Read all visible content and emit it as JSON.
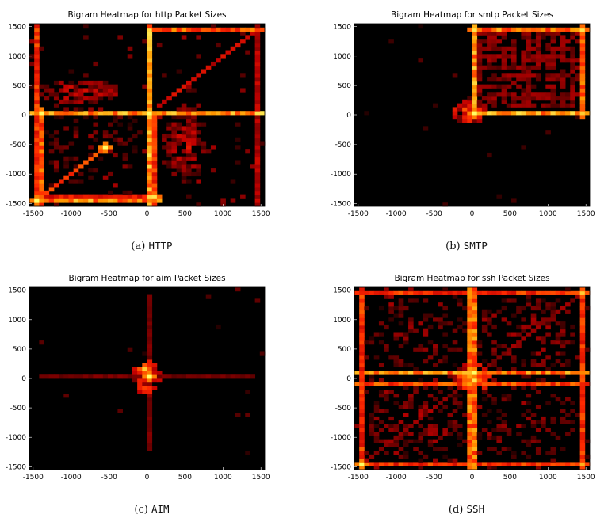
{
  "panels": [
    {
      "id": "http",
      "caption_letter": "(a)",
      "caption_code": "HTTP",
      "chart_data": {
        "type": "heatmap",
        "title": "Bigram Heatmap for http Packet Sizes",
        "xlabel": "",
        "ylabel": "",
        "xlim": [
          -1550,
          1550
        ],
        "ylim": [
          -1550,
          1550
        ],
        "xticks": [
          -1500,
          -1000,
          -500,
          0,
          500,
          1000,
          1500
        ],
        "yticks": [
          -1500,
          -1000,
          -500,
          0,
          500,
          1000,
          1500
        ],
        "colormap": [
          "#000000",
          "#5a0000",
          "#c00000",
          "#ff2a00",
          "#ff9a00",
          "#ffff66"
        ],
        "grid": false,
        "features": [
          {
            "kind": "hline",
            "at": 50,
            "from": -1500,
            "to": 1500,
            "intensity": 0.95
          },
          {
            "kind": "hline",
            "at": 1480,
            "from": 0,
            "to": 1500,
            "intensity": 0.8
          },
          {
            "kind": "hline",
            "at": -1480,
            "from": -1500,
            "to": 150,
            "intensity": 0.9
          },
          {
            "kind": "hline",
            "at": -1380,
            "from": -1400,
            "to": 100,
            "intensity": 0.6
          },
          {
            "kind": "vline",
            "at": 10,
            "from": -1500,
            "to": 1500,
            "intensity": 0.95
          },
          {
            "kind": "vline",
            "at": 120,
            "from": -1500,
            "to": 50,
            "intensity": 0.7
          },
          {
            "kind": "vline",
            "at": -1480,
            "from": -1500,
            "to": 1500,
            "intensity": 0.7
          },
          {
            "kind": "vline",
            "at": -1380,
            "from": -1500,
            "to": 50,
            "intensity": 0.8
          },
          {
            "kind": "vline",
            "at": 1480,
            "from": -1500,
            "to": 1500,
            "intensity": 0.45
          },
          {
            "kind": "diag",
            "x0": -1450,
            "y0": -1450,
            "x1": -550,
            "y1": -550,
            "intensity": 0.7
          },
          {
            "kind": "diag",
            "x0": 150,
            "y0": 150,
            "x1": 1450,
            "y1": 1450,
            "intensity": 0.5
          },
          {
            "kind": "blob",
            "x": -900,
            "y": 400,
            "rx": 550,
            "ry": 200,
            "count": 110,
            "intensity": 0.55
          },
          {
            "kind": "blob",
            "x": 500,
            "y": -500,
            "rx": 280,
            "ry": 650,
            "count": 140,
            "intensity": 0.5
          },
          {
            "kind": "blob",
            "x": -700,
            "y": -500,
            "rx": 650,
            "ry": 800,
            "count": 90,
            "intensity": 0.35
          },
          {
            "kind": "scatter",
            "count": 90,
            "intensity": 0.35
          },
          {
            "kind": "hot",
            "x": 0,
            "y": 50,
            "intensity": 1.0
          },
          {
            "kind": "hot",
            "x": -1420,
            "y": 60,
            "intensity": 1.0
          },
          {
            "kind": "hot",
            "x": -1450,
            "y": -1470,
            "intensity": 1.0
          },
          {
            "kind": "hot",
            "x": -520,
            "y": -520,
            "intensity": 1.0
          },
          {
            "kind": "hot",
            "x": 120,
            "y": -1420,
            "intensity": 0.95
          }
        ]
      }
    },
    {
      "id": "smtp",
      "caption_letter": "(b)",
      "caption_code": "SMTP",
      "chart_data": {
        "type": "heatmap",
        "title": "Bigram Heatmap for smtp Packet Sizes",
        "xlabel": "",
        "ylabel": "",
        "xlim": [
          -1550,
          1550
        ],
        "ylim": [
          -1550,
          1550
        ],
        "xticks": [
          -1500,
          -1000,
          -500,
          0,
          500,
          1000,
          1500
        ],
        "yticks": [
          -1500,
          -1000,
          -500,
          0,
          500,
          1000,
          1500
        ],
        "colormap": [
          "#000000",
          "#5a0000",
          "#c00000",
          "#ff2a00",
          "#ff9a00",
          "#ffff66"
        ],
        "grid": false,
        "features": [
          {
            "kind": "hline",
            "at": 20,
            "from": -50,
            "to": 1500,
            "intensity": 0.95
          },
          {
            "kind": "hline",
            "at": 1470,
            "from": -50,
            "to": 1500,
            "intensity": 0.85
          },
          {
            "kind": "vline",
            "at": 0,
            "from": -50,
            "to": 1500,
            "intensity": 0.95
          },
          {
            "kind": "vline",
            "at": 1440,
            "from": -50,
            "to": 1500,
            "intensity": 0.85
          },
          {
            "kind": "gridlines",
            "x0": 100,
            "x1": 1400,
            "y0": 150,
            "y1": 1400,
            "step": 110,
            "intensity": 0.35
          },
          {
            "kind": "diag",
            "x0": 0,
            "y0": 0,
            "x1": 1450,
            "y1": 1450,
            "intensity": 0.35
          },
          {
            "kind": "blob",
            "x": -50,
            "y": 50,
            "rx": 200,
            "ry": 180,
            "count": 70,
            "intensity": 0.8
          },
          {
            "kind": "scatter",
            "count": 18,
            "intensity": 0.2
          },
          {
            "kind": "hot",
            "x": 0,
            "y": 20,
            "intensity": 1.0
          },
          {
            "kind": "hot",
            "x": 0,
            "y": 1470,
            "intensity": 0.95
          },
          {
            "kind": "hot",
            "x": 1440,
            "y": 1470,
            "intensity": 0.95
          },
          {
            "kind": "hot",
            "x": 1440,
            "y": 20,
            "intensity": 0.9
          }
        ]
      }
    },
    {
      "id": "aim",
      "caption_letter": "(c)",
      "caption_code": "AIM",
      "chart_data": {
        "type": "heatmap",
        "title": "Bigram Heatmap for aim Packet Sizes",
        "xlabel": "",
        "ylabel": "",
        "xlim": [
          -1550,
          1550
        ],
        "ylim": [
          -1550,
          1550
        ],
        "xticks": [
          -1500,
          -1000,
          -500,
          0,
          500,
          1000,
          1500
        ],
        "yticks": [
          -1500,
          -1000,
          -500,
          0,
          500,
          1000,
          1500
        ],
        "colormap": [
          "#000000",
          "#5a0000",
          "#c00000",
          "#ff2a00",
          "#ff9a00",
          "#ffff66"
        ],
        "grid": false,
        "features": [
          {
            "kind": "hline",
            "at": 20,
            "from": -1400,
            "to": 1400,
            "intensity": 0.3
          },
          {
            "kind": "vline",
            "at": 0,
            "from": -1200,
            "to": 1400,
            "intensity": 0.3
          },
          {
            "kind": "blob",
            "x": 0,
            "y": 20,
            "rx": 150,
            "ry": 260,
            "count": 80,
            "intensity": 0.85
          },
          {
            "kind": "scatter",
            "count": 14,
            "intensity": 0.25
          },
          {
            "kind": "hot",
            "x": 0,
            "y": 20,
            "intensity": 1.0
          },
          {
            "kind": "hot",
            "x": -40,
            "y": 150,
            "intensity": 0.9
          }
        ]
      }
    },
    {
      "id": "ssh",
      "caption_letter": "(d)",
      "caption_code": "SSH",
      "chart_data": {
        "type": "heatmap",
        "title": "Bigram Heatmap for ssh Packet Sizes",
        "xlabel": "",
        "ylabel": "",
        "xlim": [
          -1550,
          1550
        ],
        "ylim": [
          -1550,
          1550
        ],
        "xticks": [
          -1500,
          -1000,
          -500,
          0,
          500,
          1000,
          1500
        ],
        "yticks": [
          -1500,
          -1000,
          -500,
          0,
          500,
          1000,
          1500
        ],
        "colormap": [
          "#000000",
          "#5a0000",
          "#c00000",
          "#ff2a00",
          "#ff9a00",
          "#ffff66"
        ],
        "grid": false,
        "features": [
          {
            "kind": "hline",
            "at": 80,
            "from": -1500,
            "to": 1500,
            "intensity": 0.9
          },
          {
            "kind": "hline",
            "at": -80,
            "from": -1500,
            "to": 1500,
            "intensity": 0.75
          },
          {
            "kind": "hline",
            "at": 1470,
            "from": -1500,
            "to": 1500,
            "intensity": 0.7
          },
          {
            "kind": "hline",
            "at": -1470,
            "from": -1500,
            "to": 1500,
            "intensity": 0.7
          },
          {
            "kind": "vline",
            "at": -60,
            "from": -1500,
            "to": 1500,
            "intensity": 0.85
          },
          {
            "kind": "vline",
            "at": 60,
            "from": -1500,
            "to": 1500,
            "intensity": 0.85
          },
          {
            "kind": "vline",
            "at": 1470,
            "from": -1500,
            "to": 1500,
            "intensity": 0.7
          },
          {
            "kind": "vline",
            "at": -1470,
            "from": -1500,
            "to": 1500,
            "intensity": 0.7
          },
          {
            "kind": "diag",
            "x0": -1450,
            "y0": -1450,
            "x1": 1450,
            "y1": 1450,
            "intensity": 0.35
          },
          {
            "kind": "blob",
            "x": 0,
            "y": 0,
            "rx": 250,
            "ry": 250,
            "count": 90,
            "intensity": 0.85
          },
          {
            "kind": "blob",
            "x": -700,
            "y": -700,
            "rx": 700,
            "ry": 700,
            "count": 140,
            "intensity": 0.4
          },
          {
            "kind": "blob",
            "x": 700,
            "y": 700,
            "rx": 700,
            "ry": 700,
            "count": 120,
            "intensity": 0.4
          },
          {
            "kind": "blob",
            "x": -700,
            "y": 700,
            "rx": 700,
            "ry": 700,
            "count": 90,
            "intensity": 0.35
          },
          {
            "kind": "blob",
            "x": 700,
            "y": -700,
            "rx": 700,
            "ry": 700,
            "count": 90,
            "intensity": 0.35
          },
          {
            "kind": "scatter",
            "count": 160,
            "intensity": 0.35
          },
          {
            "kind": "hot",
            "x": 0,
            "y": 80,
            "intensity": 1.0
          },
          {
            "kind": "hot",
            "x": 60,
            "y": -60,
            "intensity": 0.95
          },
          {
            "kind": "hot",
            "x": -1470,
            "y": -1470,
            "intensity": 1.0
          },
          {
            "kind": "hot",
            "x": 1470,
            "y": 1470,
            "intensity": 0.9
          },
          {
            "kind": "hot",
            "x": 1470,
            "y": -1470,
            "intensity": 0.85
          }
        ]
      }
    }
  ]
}
